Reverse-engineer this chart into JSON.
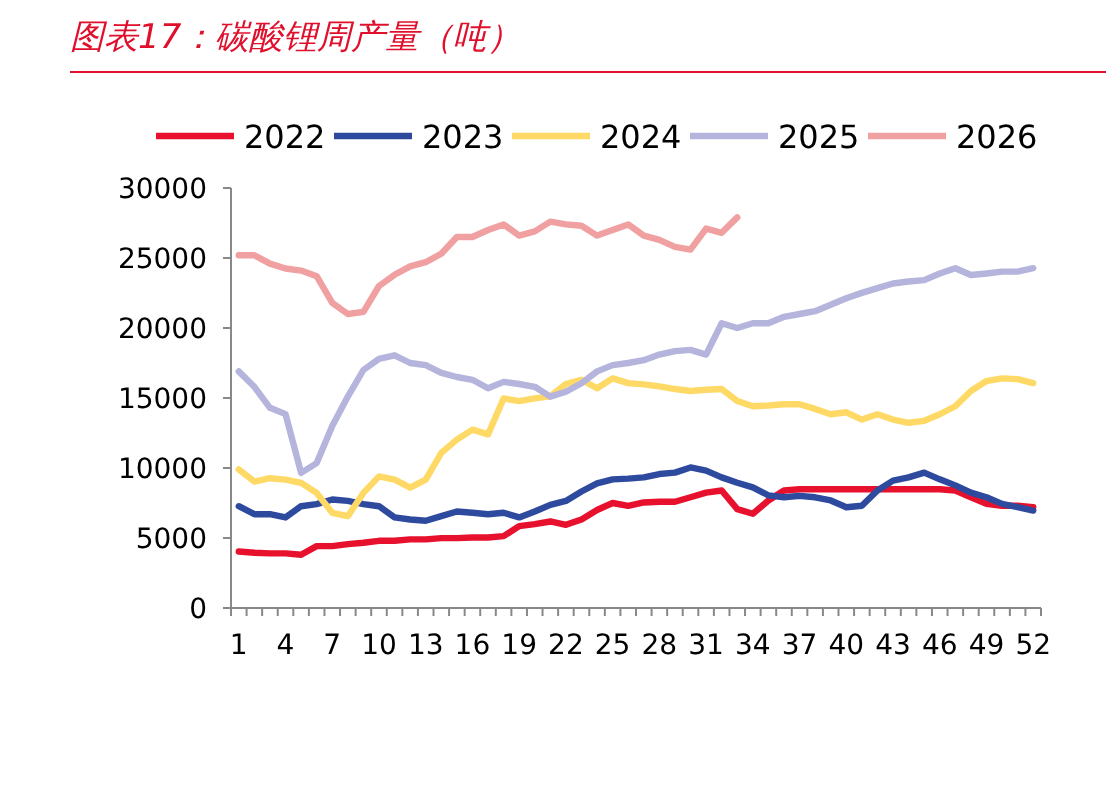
{
  "chart_data": {
    "type": "line",
    "title": "图表17：碳酸锂周产量（吨）",
    "categories": [
      "1",
      null,
      null,
      "4",
      null,
      null,
      "7",
      null,
      null,
      "10",
      null,
      null,
      "13",
      null,
      null,
      "16",
      null,
      null,
      "19",
      null,
      null,
      "22",
      null,
      null,
      "25",
      null,
      null,
      "28",
      null,
      null,
      "31",
      null,
      null,
      "34",
      null,
      null,
      "37",
      null,
      null,
      "40",
      null,
      null,
      "43",
      null,
      null,
      "46",
      null,
      null,
      "49",
      null,
      null,
      "52"
    ],
    "ylim": [
      0,
      30000
    ],
    "yticks": [
      0,
      5000,
      10000,
      15000,
      20000,
      25000,
      30000
    ],
    "grid": false,
    "legend": "top",
    "marker": "none",
    "line_style": "solid",
    "series": [
      {
        "name": "2022",
        "color": "#e8112d",
        "values": [
          4040,
          3950,
          3900,
          3900,
          3800,
          4420,
          4420,
          4560,
          4660,
          4800,
          4800,
          4900,
          4900,
          4990,
          4990,
          5040,
          5040,
          5130,
          5850,
          5990,
          6180,
          5940,
          6320,
          7000,
          7500,
          7300,
          7540,
          7590,
          7590,
          7910,
          8240,
          8390,
          7060,
          6730,
          7680,
          8390,
          8480,
          8480,
          8480,
          8480,
          8480,
          8480,
          8480,
          8480,
          8480,
          8480,
          8390,
          7910,
          7440,
          7300,
          7300,
          7200
        ]
      },
      {
        "name": "2023",
        "color": "#2e4a9e",
        "values": [
          7270,
          6700,
          6700,
          6470,
          7270,
          7420,
          7750,
          7650,
          7420,
          7270,
          6470,
          6320,
          6230,
          6560,
          6890,
          6800,
          6700,
          6800,
          6470,
          6890,
          7370,
          7650,
          8320,
          8900,
          9190,
          9240,
          9330,
          9570,
          9670,
          10040,
          9810,
          9330,
          8950,
          8620,
          8050,
          7910,
          8010,
          7910,
          7680,
          7200,
          7300,
          8390,
          9100,
          9330,
          9670,
          9190,
          8760,
          8240,
          7910,
          7440,
          7200,
          6960
        ]
      },
      {
        "name": "2024",
        "color": "#ffd966",
        "values": [
          9900,
          9030,
          9270,
          9170,
          8940,
          8220,
          6800,
          6560,
          8220,
          9400,
          9170,
          8600,
          9170,
          11080,
          12030,
          12740,
          12400,
          14970,
          14780,
          14970,
          15120,
          16000,
          16300,
          15700,
          16400,
          16060,
          15970,
          15830,
          15640,
          15500,
          15590,
          15640,
          14790,
          14410,
          14460,
          14550,
          14550,
          14220,
          13840,
          13980,
          13460,
          13840,
          13460,
          13230,
          13370,
          13840,
          14410,
          15500,
          16210,
          16400,
          16350,
          16060
        ]
      },
      {
        "name": "2025",
        "color": "#b4b4dc",
        "values": [
          16900,
          15800,
          14300,
          13850,
          9650,
          10350,
          13000,
          15100,
          17000,
          17800,
          18050,
          17500,
          17350,
          16800,
          16500,
          16300,
          15700,
          16150,
          16000,
          15800,
          15100,
          15450,
          16050,
          16900,
          17350,
          17500,
          17700,
          18100,
          18350,
          18440,
          18100,
          20340,
          20000,
          20340,
          20340,
          20800,
          21000,
          21200,
          21660,
          22130,
          22510,
          22850,
          23180,
          23320,
          23420,
          23890,
          24270,
          23790,
          23890,
          24030,
          24030,
          24270
        ]
      },
      {
        "name": "2026",
        "color": "#f0a0a0",
        "values": [
          25200,
          25200,
          24600,
          24250,
          24100,
          23700,
          21800,
          21000,
          21150,
          23000,
          23800,
          24400,
          24700,
          25300,
          26500,
          26500,
          27000,
          27400,
          26600,
          26900,
          27600,
          27400,
          27300,
          26600,
          27000,
          27400,
          26600,
          26300,
          25800,
          25600,
          27100,
          26800,
          27900,
          null,
          null,
          null,
          null,
          null,
          null,
          null,
          null,
          null,
          null,
          null,
          null,
          null,
          null,
          null,
          null,
          null,
          null,
          null
        ]
      }
    ]
  }
}
